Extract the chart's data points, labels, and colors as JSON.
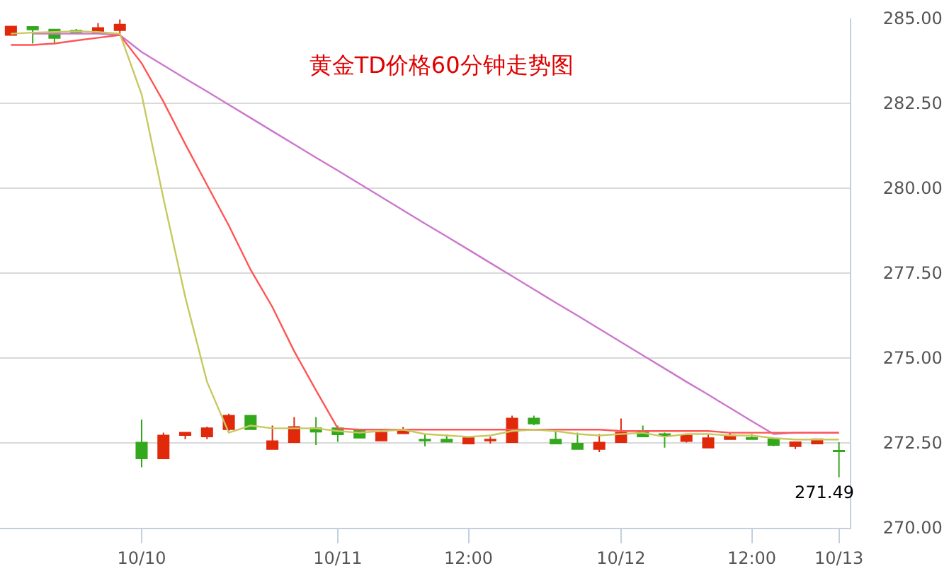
{
  "chart_data": {
    "type": "candlestick",
    "title": "黄金TD价格60分钟走势图",
    "categories": [
      null,
      null,
      null,
      null,
      null,
      null,
      "10/10",
      null,
      null,
      null,
      null,
      null,
      null,
      null,
      null,
      "10/11",
      null,
      null,
      null,
      null,
      null,
      "12:00",
      null,
      null,
      null,
      null,
      null,
      null,
      "10/12",
      null,
      null,
      null,
      null,
      null,
      "12:00",
      null,
      null,
      null,
      "10/13"
    ],
    "ylim": [
      270,
      285
    ],
    "yticks": [
      {
        "value": 270,
        "label": "270.00"
      },
      {
        "value": 272.5,
        "label": "272.50"
      },
      {
        "value": 275,
        "label": "275.00"
      },
      {
        "value": 277.5,
        "label": "277.50"
      },
      {
        "value": 280,
        "label": "280.00"
      },
      {
        "value": 282.5,
        "label": "282.50"
      },
      {
        "value": 285,
        "label": "285.00"
      }
    ],
    "grid": "y",
    "annotations": [
      {
        "text": "271.49",
        "x": "10/13",
        "y": 271.49
      }
    ],
    "series": [
      {
        "ohlc": [
          [
            284.51,
            284.76,
            284.51,
            284.76
          ],
          [
            284.75,
            284.75,
            284.26,
            284.67
          ],
          [
            284.67,
            284.67,
            284.23,
            284.42
          ],
          [
            284.64,
            284.69,
            284.57,
            284.57
          ],
          [
            284.57,
            284.86,
            284.57,
            284.72
          ],
          [
            284.65,
            284.97,
            284.51,
            284.82
          ],
          [
            272.51,
            273.19,
            271.78,
            272.04
          ],
          [
            272.04,
            272.8,
            272.04,
            272.72
          ],
          [
            272.73,
            272.8,
            272.61,
            272.8
          ],
          [
            272.69,
            272.98,
            272.61,
            272.93
          ],
          [
            272.9,
            273.36,
            272.85,
            273.3
          ],
          [
            273.3,
            273.3,
            272.89,
            272.9
          ],
          [
            272.32,
            273.01,
            272.32,
            272.55
          ],
          [
            272.52,
            273.26,
            272.52,
            272.97
          ],
          [
            272.93,
            273.26,
            272.44,
            272.83
          ],
          [
            272.93,
            273.01,
            272.53,
            272.75
          ],
          [
            272.89,
            272.89,
            272.65,
            272.65
          ],
          [
            272.57,
            272.89,
            272.57,
            272.8
          ],
          [
            272.78,
            272.97,
            272.78,
            272.89
          ],
          [
            272.6,
            272.75,
            272.4,
            272.57
          ],
          [
            272.6,
            272.75,
            272.53,
            272.53
          ],
          [
            272.48,
            272.64,
            272.48,
            272.64
          ],
          [
            272.57,
            272.68,
            272.48,
            272.6
          ],
          [
            272.52,
            273.3,
            272.52,
            273.22
          ],
          [
            273.22,
            273.3,
            273.02,
            273.07
          ],
          [
            272.6,
            272.85,
            272.48,
            272.48
          ],
          [
            272.48,
            272.8,
            272.32,
            272.32
          ],
          [
            272.32,
            272.76,
            272.23,
            272.51
          ],
          [
            272.52,
            273.22,
            272.52,
            272.8
          ],
          [
            272.85,
            273.01,
            272.69,
            272.69
          ],
          [
            272.76,
            272.8,
            272.36,
            272.73
          ],
          [
            272.55,
            272.72,
            272.51,
            272.72
          ],
          [
            272.36,
            272.76,
            272.36,
            272.64
          ],
          [
            272.61,
            272.8,
            272.61,
            272.72
          ],
          [
            272.65,
            272.76,
            272.61,
            272.61
          ],
          [
            272.61,
            272.65,
            272.4,
            272.44
          ],
          [
            272.4,
            272.52,
            272.32,
            272.52
          ],
          [
            272.48,
            272.61,
            272.48,
            272.61
          ],
          [
            272.27,
            272.52,
            271.49,
            272.25
          ]
        ],
        "colors": [
          "#e0290b",
          "#34a81c",
          "#34a81c",
          "#34a81c",
          "#e0290b",
          "#e0290b",
          "#34a81c",
          "#e0290b",
          "#e0290b",
          "#e0290b",
          "#e0290b",
          "#34a81c",
          "#e0290b",
          "#e0290b",
          "#34a81c",
          "#34a81c",
          "#34a81c",
          "#e0290b",
          "#e0290b",
          "#34a81c",
          "#34a81c",
          "#e0290b",
          "#e0290b",
          "#e0290b",
          "#34a81c",
          "#34a81c",
          "#34a81c",
          "#e0290b",
          "#e0290b",
          "#34a81c",
          "#34a81c",
          "#e0290b",
          "#e0290b",
          "#e0290b",
          "#34a81c",
          "#34a81c",
          "#e0290b",
          "#e0290b",
          "#34a81c"
        ]
      },
      {
        "type": "line",
        "color": "#c8c860",
        "values": [
          284.55,
          284.58,
          284.6,
          284.62,
          284.6,
          284.55,
          282.76,
          279.7,
          276.8,
          274.3,
          272.8,
          273.01,
          272.93,
          272.93,
          272.93,
          272.85,
          272.8,
          272.85,
          272.89,
          272.76,
          272.72,
          272.68,
          272.72,
          272.85,
          272.89,
          272.85,
          272.76,
          272.72,
          272.76,
          272.8,
          272.68,
          272.76,
          272.76,
          272.72,
          272.72,
          272.64,
          272.6,
          272.6,
          272.6
        ]
      },
      {
        "type": "line",
        "color": "#ff5555",
        "values": [
          284.22,
          284.22,
          284.26,
          284.35,
          284.43,
          284.51,
          283.68,
          282.55,
          281.3,
          280.1,
          278.9,
          277.6,
          276.5,
          275.2,
          274.05,
          272.93,
          272.89,
          272.89,
          272.89,
          272.89,
          272.89,
          272.89,
          272.89,
          272.89,
          272.89,
          272.89,
          272.89,
          272.89,
          272.85,
          272.85,
          272.85,
          272.85,
          272.85,
          272.8,
          272.8,
          272.8,
          272.8,
          272.8,
          272.8
        ]
      },
      {
        "type": "line",
        "color": "#cc77cc",
        "values": [
          null,
          284.55,
          284.55,
          284.55,
          284.55,
          284.51,
          284.01,
          283.62,
          283.23,
          282.85,
          282.46,
          282.07,
          281.68,
          281.29,
          280.9,
          280.52,
          280.13,
          279.74,
          279.35,
          278.96,
          278.58,
          278.19,
          277.8,
          277.41,
          277.02,
          276.63,
          276.25,
          275.86,
          275.47,
          275.08,
          274.69,
          274.3,
          273.92,
          273.53,
          273.14,
          272.76,
          272.8,
          272.8,
          272.8
        ]
      }
    ]
  }
}
